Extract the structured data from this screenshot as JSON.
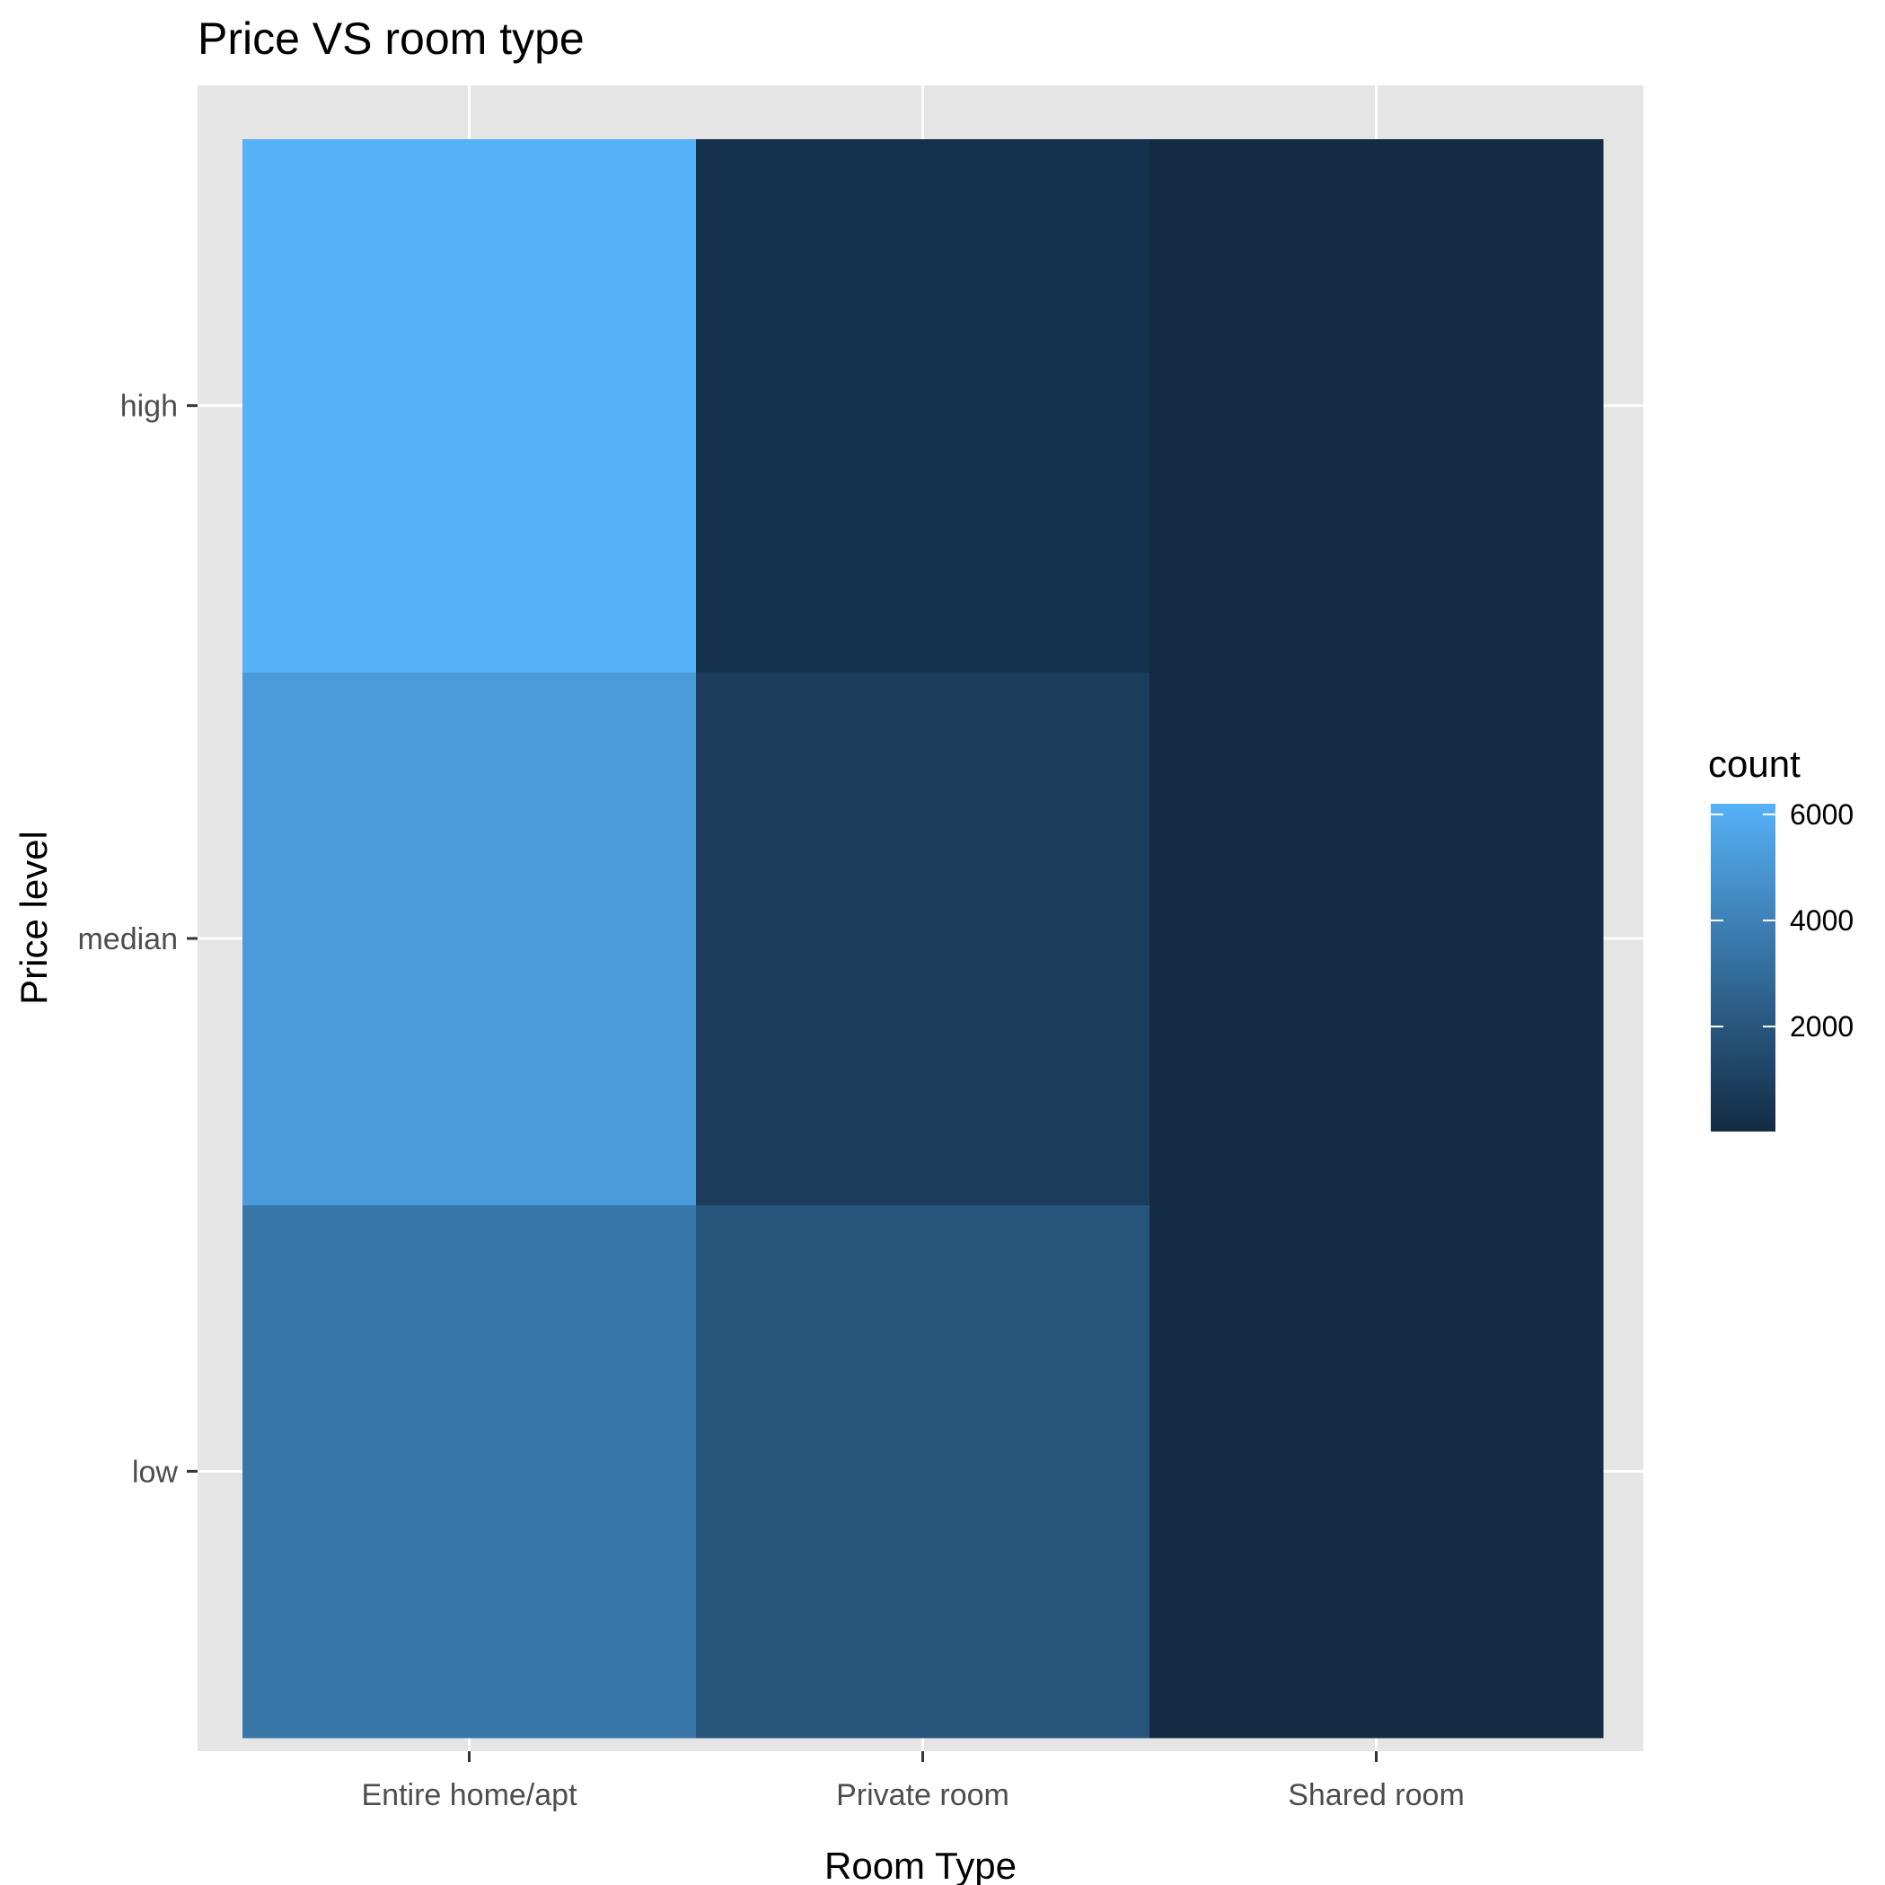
{
  "chart_data": {
    "type": "heatmap",
    "title": "Price VS room type",
    "xlabel": "Room Type",
    "ylabel": "Price level",
    "x_categories": [
      "Entire home/apt",
      "Private room",
      "Shared room"
    ],
    "y_categories": [
      "low",
      "median",
      "high"
    ],
    "values": [
      [
        3500,
        5200,
        6200
      ],
      [
        1900,
        800,
        300
      ],
      [
        60,
        50,
        20
      ]
    ],
    "legend": {
      "title": "count",
      "ticks": [
        2000,
        4000,
        6000
      ],
      "range": [
        20,
        6200
      ],
      "colors": {
        "low": "#132B43",
        "high": "#56B1F7"
      }
    },
    "grid": true
  }
}
